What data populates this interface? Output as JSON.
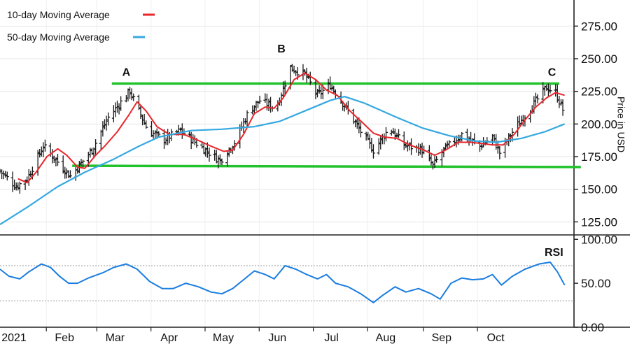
{
  "chart_data": [
    {
      "type": "ohlc",
      "title": "",
      "ylabel": "Price in USD",
      "ylim": [
        115,
        295
      ],
      "yticks": [
        125,
        150,
        175,
        200,
        225,
        250,
        275
      ],
      "ytick_labels": [
        "125.00",
        "150.00",
        "175.00",
        "200.00",
        "225.00",
        "250.00",
        "275.00"
      ],
      "x_start": "2021-01-04",
      "x_end": "2021-11-05",
      "months": [
        "2021",
        "Feb",
        "Mar",
        "Apr",
        "May",
        "Jun",
        "Jul",
        "Aug",
        "Sep",
        "Oct"
      ],
      "month_dates": [
        "2021-01-11",
        "2021-02-08",
        "2021-03-08",
        "2021-04-07",
        "2021-05-07",
        "2021-06-06",
        "2021-07-06",
        "2021-08-05",
        "2021-09-05",
        "2021-10-05"
      ],
      "legend": [
        {
          "name": "10-day Moving Average",
          "color": "#e8262b"
        },
        {
          "name": "50-day Moving Average",
          "color": "#35a8e0"
        }
      ],
      "legend_position": "top-left",
      "price_anchors": [
        [
          "2021-01-04",
          164
        ],
        [
          "2021-01-13",
          152
        ],
        [
          "2021-01-19",
          158
        ],
        [
          "2021-01-28",
          183
        ],
        [
          "2021-02-05",
          171
        ],
        [
          "2021-02-12",
          160
        ],
        [
          "2021-02-24",
          180
        ],
        [
          "2021-03-05",
          205
        ],
        [
          "2021-03-17",
          225
        ],
        [
          "2021-03-27",
          195
        ],
        [
          "2021-04-05",
          188
        ],
        [
          "2021-04-14",
          195
        ],
        [
          "2021-04-24",
          184
        ],
        [
          "2021-05-06",
          172
        ],
        [
          "2021-05-14",
          186
        ],
        [
          "2021-05-22",
          210
        ],
        [
          "2021-05-28",
          218
        ],
        [
          "2021-06-06",
          212
        ],
        [
          "2021-06-14",
          243
        ],
        [
          "2021-06-22",
          238
        ],
        [
          "2021-06-29",
          222
        ],
        [
          "2021-07-06",
          230
        ],
        [
          "2021-07-14",
          214
        ],
        [
          "2021-07-24",
          192
        ],
        [
          "2021-07-30",
          180
        ],
        [
          "2021-08-08",
          197
        ],
        [
          "2021-08-16",
          184
        ],
        [
          "2021-08-26",
          180
        ],
        [
          "2021-09-01",
          168
        ],
        [
          "2021-09-07",
          180
        ],
        [
          "2021-09-17",
          192
        ],
        [
          "2021-09-27",
          183
        ],
        [
          "2021-10-04",
          190
        ],
        [
          "2021-10-08",
          178
        ],
        [
          "2021-10-16",
          196
        ],
        [
          "2021-10-24",
          210
        ],
        [
          "2021-11-03",
          228
        ],
        [
          "2021-11-08",
          224
        ],
        [
          "2021-11-12",
          211
        ]
      ],
      "series": [
        {
          "name": "10-day Moving Average",
          "color": "#e8262b",
          "points": [
            [
              "2021-01-14",
              158
            ],
            [
              "2021-01-19",
              155
            ],
            [
              "2021-01-24",
              163
            ],
            [
              "2021-01-30",
              175
            ],
            [
              "2021-02-05",
              181
            ],
            [
              "2021-02-10",
              176
            ],
            [
              "2021-02-16",
              167
            ],
            [
              "2021-02-20",
              166
            ],
            [
              "2021-02-26",
              176
            ],
            [
              "2021-03-03",
              183
            ],
            [
              "2021-03-10",
              194
            ],
            [
              "2021-03-16",
              206
            ],
            [
              "2021-03-21",
              217
            ],
            [
              "2021-03-26",
              210
            ],
            [
              "2021-04-01",
              198
            ],
            [
              "2021-04-08",
              192
            ],
            [
              "2021-04-16",
              192
            ],
            [
              "2021-04-23",
              188
            ],
            [
              "2021-05-01",
              183
            ],
            [
              "2021-05-08",
              179
            ],
            [
              "2021-05-13",
              180
            ],
            [
              "2021-05-19",
              192
            ],
            [
              "2021-05-25",
              208
            ],
            [
              "2021-05-31",
              213
            ],
            [
              "2021-06-05",
              212
            ],
            [
              "2021-06-10",
              220
            ],
            [
              "2021-06-16",
              234
            ],
            [
              "2021-06-22",
              239
            ],
            [
              "2021-06-28",
              234
            ],
            [
              "2021-07-04",
              226
            ],
            [
              "2021-07-10",
              222
            ],
            [
              "2021-07-17",
              210
            ],
            [
              "2021-07-24",
              201
            ],
            [
              "2021-07-30",
              193
            ],
            [
              "2021-08-05",
              190
            ],
            [
              "2021-08-12",
              189
            ],
            [
              "2021-08-19",
              184
            ],
            [
              "2021-08-27",
              180
            ],
            [
              "2021-09-02",
              176
            ],
            [
              "2021-09-08",
              180
            ],
            [
              "2021-09-15",
              186
            ],
            [
              "2021-09-22",
              186
            ],
            [
              "2021-09-28",
              185
            ],
            [
              "2021-10-04",
              184
            ],
            [
              "2021-10-10",
              184
            ],
            [
              "2021-10-16",
              192
            ],
            [
              "2021-10-22",
              203
            ],
            [
              "2021-10-28",
              213
            ],
            [
              "2021-11-03",
              220
            ],
            [
              "2021-11-08",
              224
            ],
            [
              "2021-11-13",
              222
            ]
          ]
        },
        {
          "name": "50-day Moving Average",
          "color": "#35a8e0",
          "points": [
            [
              "2021-01-04",
              123
            ],
            [
              "2021-01-20",
              137
            ],
            [
              "2021-02-05",
              152
            ],
            [
              "2021-02-20",
              163
            ],
            [
              "2021-03-08",
              173
            ],
            [
              "2021-03-22",
              183
            ],
            [
              "2021-04-02",
              190
            ],
            [
              "2021-04-20",
              195
            ],
            [
              "2021-05-07",
              196
            ],
            [
              "2021-05-25",
              198
            ],
            [
              "2021-06-08",
              202
            ],
            [
              "2021-06-22",
              210
            ],
            [
              "2021-07-06",
              218
            ],
            [
              "2021-07-14",
              221
            ],
            [
              "2021-07-25",
              216
            ],
            [
              "2021-08-12",
              205
            ],
            [
              "2021-08-26",
              197
            ],
            [
              "2021-09-10",
              191
            ],
            [
              "2021-09-24",
              187
            ],
            [
              "2021-10-06",
              186
            ],
            [
              "2021-10-20",
              189
            ],
            [
              "2021-11-02",
              194
            ],
            [
              "2021-11-13",
              200
            ]
          ]
        }
      ],
      "trendlines": [
        {
          "name": "resistance",
          "color": "#22c22c",
          "from": [
            "2021-03-07",
            231
          ],
          "to": [
            "2021-11-10",
            231
          ]
        },
        {
          "name": "support",
          "color": "#22c22c",
          "from": [
            "2021-02-13",
            168
          ],
          "to": [
            "2021-11-22",
            167
          ]
        }
      ],
      "annotations": [
        {
          "label": "A",
          "date": "2021-03-15",
          "value": 240
        },
        {
          "label": "B",
          "date": "2021-06-09",
          "value": 258
        },
        {
          "label": "C",
          "date": "2021-11-06",
          "value": 240
        }
      ]
    },
    {
      "type": "line",
      "title": "RSI",
      "ylim": [
        0,
        105
      ],
      "yticks": [
        0,
        50,
        100
      ],
      "ytick_labels": [
        "0.00",
        "50.00",
        "100.00"
      ],
      "reference_lines": [
        70,
        30
      ],
      "series": [
        {
          "name": "RSI",
          "color": "#1a7de0",
          "points": [
            [
              "2021-01-04",
              66
            ],
            [
              "2021-01-09",
              58
            ],
            [
              "2021-01-15",
              55
            ],
            [
              "2021-01-20",
              63
            ],
            [
              "2021-01-27",
              72
            ],
            [
              "2021-02-01",
              68
            ],
            [
              "2021-02-06",
              58
            ],
            [
              "2021-02-11",
              50
            ],
            [
              "2021-02-16",
              50
            ],
            [
              "2021-02-22",
              56
            ],
            [
              "2021-03-02",
              62
            ],
            [
              "2021-03-08",
              68
            ],
            [
              "2021-03-15",
              72
            ],
            [
              "2021-03-21",
              66
            ],
            [
              "2021-03-28",
              52
            ],
            [
              "2021-04-04",
              44
            ],
            [
              "2021-04-10",
              44
            ],
            [
              "2021-04-17",
              50
            ],
            [
              "2021-04-24",
              46
            ],
            [
              "2021-05-01",
              40
            ],
            [
              "2021-05-07",
              38
            ],
            [
              "2021-05-13",
              44
            ],
            [
              "2021-05-19",
              54
            ],
            [
              "2021-05-25",
              64
            ],
            [
              "2021-05-31",
              60
            ],
            [
              "2021-06-05",
              55
            ],
            [
              "2021-06-11",
              70
            ],
            [
              "2021-06-17",
              66
            ],
            [
              "2021-06-23",
              60
            ],
            [
              "2021-06-29",
              55
            ],
            [
              "2021-07-04",
              60
            ],
            [
              "2021-07-09",
              50
            ],
            [
              "2021-07-16",
              46
            ],
            [
              "2021-07-23",
              38
            ],
            [
              "2021-07-30",
              28
            ],
            [
              "2021-08-04",
              36
            ],
            [
              "2021-08-11",
              46
            ],
            [
              "2021-08-17",
              40
            ],
            [
              "2021-08-24",
              44
            ],
            [
              "2021-08-31",
              38
            ],
            [
              "2021-09-05",
              32
            ],
            [
              "2021-09-11",
              50
            ],
            [
              "2021-09-17",
              56
            ],
            [
              "2021-09-23",
              54
            ],
            [
              "2021-09-29",
              55
            ],
            [
              "2021-10-04",
              60
            ],
            [
              "2021-10-09",
              48
            ],
            [
              "2021-10-15",
              58
            ],
            [
              "2021-10-22",
              66
            ],
            [
              "2021-10-30",
              72
            ],
            [
              "2021-11-05",
              74
            ],
            [
              "2021-11-09",
              63
            ],
            [
              "2021-11-13",
              48
            ]
          ]
        }
      ]
    }
  ]
}
